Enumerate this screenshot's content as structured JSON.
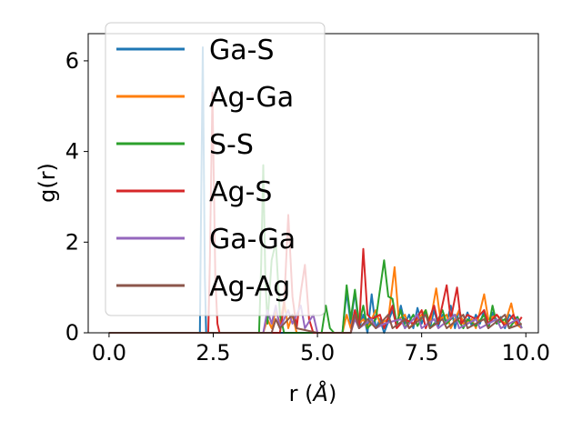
{
  "chart_data": {
    "type": "line",
    "title": "",
    "xlabel": "r (Å)",
    "xlabel_main": "r (",
    "xlabel_unit": "Å",
    "xlabel_close": ")",
    "ylabel": "g(r)",
    "xlim": [
      -0.5,
      10.3
    ],
    "ylim": [
      0,
      6.6
    ],
    "xticks": [
      0.0,
      2.5,
      5.0,
      7.5,
      10.0
    ],
    "xtick_labels": [
      "0.0",
      "2.5",
      "5.0",
      "7.5",
      "10.0"
    ],
    "yticks": [
      0,
      2,
      4,
      6
    ],
    "ytick_labels": [
      "0",
      "2",
      "4",
      "6"
    ],
    "grid": false,
    "legend_position": "upper-left",
    "series": [
      {
        "name": "Ga-S",
        "color": "#1f77b4",
        "points": [
          [
            0,
            0
          ],
          [
            2.18,
            0
          ],
          [
            2.2,
            2.1
          ],
          [
            2.25,
            6.3
          ],
          [
            2.3,
            1.2
          ],
          [
            2.33,
            0
          ],
          [
            5.6,
            0
          ],
          [
            5.7,
            0.9
          ],
          [
            5.8,
            0.2
          ],
          [
            5.9,
            0.9
          ],
          [
            6.0,
            0.1
          ],
          [
            6.1,
            0.4
          ],
          [
            6.2,
            0.0
          ],
          [
            6.3,
            0.85
          ],
          [
            6.4,
            0.1
          ],
          [
            6.5,
            0.3
          ],
          [
            6.6,
            0.0
          ],
          [
            6.8,
            0.5
          ],
          [
            6.9,
            0.15
          ],
          [
            7.0,
            0.6
          ],
          [
            7.1,
            0.2
          ],
          [
            7.2,
            0.4
          ],
          [
            7.3,
            0.1
          ],
          [
            7.4,
            0.55
          ],
          [
            7.5,
            0.2
          ],
          [
            7.6,
            0.45
          ],
          [
            7.7,
            0.1
          ],
          [
            7.8,
            0.5
          ],
          [
            7.9,
            0.15
          ],
          [
            8.0,
            0.4
          ],
          [
            8.1,
            0.2
          ],
          [
            8.2,
            0.6
          ],
          [
            8.3,
            0.1
          ],
          [
            8.4,
            0.5
          ],
          [
            8.5,
            0.2
          ],
          [
            8.6,
            0.45
          ],
          [
            8.7,
            0.15
          ],
          [
            8.8,
            0.4
          ],
          [
            8.9,
            0.2
          ],
          [
            9.0,
            0.5
          ],
          [
            9.1,
            0.1
          ],
          [
            9.2,
            0.45
          ],
          [
            9.3,
            0.2
          ],
          [
            9.4,
            0.35
          ],
          [
            9.5,
            0.1
          ],
          [
            9.6,
            0.4
          ],
          [
            9.7,
            0.3
          ],
          [
            9.8,
            0.35
          ],
          [
            9.9,
            0.1
          ]
        ]
      },
      {
        "name": "Ag-Ga",
        "color": "#ff7f0e",
        "points": [
          [
            0,
            0
          ],
          [
            3.7,
            0
          ],
          [
            3.8,
            0.3
          ],
          [
            3.9,
            0.1
          ],
          [
            4.0,
            0.5
          ],
          [
            4.1,
            0.2
          ],
          [
            4.2,
            0.7
          ],
          [
            4.3,
            0.1
          ],
          [
            4.4,
            0.4
          ],
          [
            4.5,
            0.0
          ],
          [
            5.6,
            0
          ],
          [
            5.7,
            0.4
          ],
          [
            5.8,
            0.1
          ],
          [
            5.9,
            0.5
          ],
          [
            6.0,
            0.2
          ],
          [
            6.1,
            0.3
          ],
          [
            6.2,
            0.1
          ],
          [
            6.4,
            0.5
          ],
          [
            6.5,
            0.2
          ],
          [
            6.7,
            0.3
          ],
          [
            6.85,
            1.45
          ],
          [
            6.95,
            0.3
          ],
          [
            7.1,
            0.4
          ],
          [
            7.2,
            0.1
          ],
          [
            7.4,
            0.3
          ],
          [
            7.6,
            0.5
          ],
          [
            7.7,
            0.2
          ],
          [
            7.85,
            0.98
          ],
          [
            7.95,
            0.3
          ],
          [
            8.1,
            0.4
          ],
          [
            8.2,
            0.1
          ],
          [
            8.4,
            0.5
          ],
          [
            8.5,
            0.2
          ],
          [
            8.7,
            0.3
          ],
          [
            8.8,
            0.1
          ],
          [
            9.0,
            0.85
          ],
          [
            9.1,
            0.3
          ],
          [
            9.3,
            0.4
          ],
          [
            9.5,
            0.2
          ],
          [
            9.65,
            0.65
          ],
          [
            9.75,
            0.2
          ],
          [
            9.9,
            0.1
          ]
        ]
      },
      {
        "name": "S-S",
        "color": "#2ca02c",
        "points": [
          [
            0,
            0
          ],
          [
            3.6,
            0
          ],
          [
            3.65,
            1.5
          ],
          [
            3.7,
            3.7
          ],
          [
            3.75,
            1.2
          ],
          [
            3.8,
            0.2
          ],
          [
            3.9,
            1.6
          ],
          [
            4.0,
            2.0
          ],
          [
            4.1,
            0.4
          ],
          [
            4.2,
            0.0
          ],
          [
            5.1,
            0
          ],
          [
            5.2,
            0.6
          ],
          [
            5.3,
            0.1
          ],
          [
            5.4,
            0.0
          ],
          [
            5.6,
            0
          ],
          [
            5.7,
            1.05
          ],
          [
            5.8,
            0.3
          ],
          [
            5.9,
            0.95
          ],
          [
            6.0,
            0.2
          ],
          [
            6.1,
            0.6
          ],
          [
            6.2,
            0.1
          ],
          [
            6.4,
            0.3
          ],
          [
            6.6,
            1.6
          ],
          [
            6.7,
            0.8
          ],
          [
            6.8,
            0.75
          ],
          [
            6.9,
            0.2
          ],
          [
            7.0,
            0.5
          ],
          [
            7.1,
            0.1
          ],
          [
            7.3,
            0.4
          ],
          [
            7.4,
            0.15
          ],
          [
            7.6,
            0.5
          ],
          [
            7.7,
            0.1
          ],
          [
            7.9,
            0.3
          ],
          [
            8.0,
            0.5
          ],
          [
            8.1,
            0.2
          ],
          [
            8.3,
            0.4
          ],
          [
            8.5,
            0.1
          ],
          [
            8.6,
            0.3
          ],
          [
            8.8,
            0.15
          ],
          [
            9.0,
            0.4
          ],
          [
            9.1,
            0.1
          ],
          [
            9.2,
            0.6
          ],
          [
            9.3,
            0.2
          ],
          [
            9.5,
            0.3
          ],
          [
            9.6,
            0.1
          ],
          [
            9.8,
            0.35
          ],
          [
            9.9,
            0.1
          ]
        ]
      },
      {
        "name": "Ag-S",
        "color": "#d62728",
        "points": [
          [
            0,
            0
          ],
          [
            2.38,
            0
          ],
          [
            2.42,
            1.6
          ],
          [
            2.48,
            5.3
          ],
          [
            2.55,
            1.2
          ],
          [
            2.6,
            0.2
          ],
          [
            2.65,
            0
          ],
          [
            4.1,
            0
          ],
          [
            4.2,
            0.6
          ],
          [
            4.3,
            2.6
          ],
          [
            4.4,
            0.8
          ],
          [
            4.5,
            0.1
          ],
          [
            4.6,
            0.9
          ],
          [
            4.7,
            1.5
          ],
          [
            4.8,
            0.3
          ],
          [
            4.9,
            0.0
          ],
          [
            5.8,
            0
          ],
          [
            5.9,
            0.5
          ],
          [
            6.0,
            0.1
          ],
          [
            6.1,
            1.85
          ],
          [
            6.2,
            0.4
          ],
          [
            6.3,
            0.3
          ],
          [
            6.5,
            0.4
          ],
          [
            6.6,
            0.1
          ],
          [
            6.8,
            0.6
          ],
          [
            6.9,
            0.1
          ],
          [
            7.1,
            0.3
          ],
          [
            7.3,
            0.2
          ],
          [
            7.5,
            0.5
          ],
          [
            7.6,
            0.1
          ],
          [
            7.8,
            0.6
          ],
          [
            7.9,
            0.2
          ],
          [
            8.1,
            1.05
          ],
          [
            8.2,
            0.3
          ],
          [
            8.35,
            1.0
          ],
          [
            8.45,
            0.2
          ],
          [
            8.6,
            0.4
          ],
          [
            8.8,
            0.3
          ],
          [
            9.0,
            0.5
          ],
          [
            9.1,
            0.2
          ],
          [
            9.3,
            0.4
          ],
          [
            9.5,
            0.15
          ],
          [
            9.7,
            0.4
          ],
          [
            9.8,
            0.2
          ],
          [
            9.9,
            0.35
          ]
        ]
      },
      {
        "name": "Ga-Ga",
        "color": "#9467bd",
        "points": [
          [
            0,
            0
          ],
          [
            3.7,
            0
          ],
          [
            3.8,
            0.5
          ],
          [
            3.9,
            0.2
          ],
          [
            4.0,
            0.6
          ],
          [
            4.1,
            0.1
          ],
          [
            4.3,
            0.5
          ],
          [
            4.4,
            0.2
          ],
          [
            4.6,
            0.6
          ],
          [
            4.7,
            0.1
          ],
          [
            4.9,
            0.4
          ],
          [
            5.0,
            0.0
          ],
          [
            5.8,
            0
          ],
          [
            5.9,
            0.3
          ],
          [
            6.0,
            0.1
          ],
          [
            6.3,
            0.3
          ],
          [
            6.4,
            0.1
          ],
          [
            6.6,
            0.2
          ],
          [
            7.0,
            0.3
          ],
          [
            7.1,
            0.1
          ],
          [
            7.4,
            0.4
          ],
          [
            7.5,
            0.1
          ],
          [
            7.8,
            0.3
          ],
          [
            7.9,
            0.1
          ],
          [
            8.3,
            0.4
          ],
          [
            8.4,
            0.1
          ],
          [
            8.8,
            0.3
          ],
          [
            8.9,
            0.1
          ],
          [
            9.3,
            0.3
          ],
          [
            9.4,
            0.1
          ],
          [
            9.8,
            0.3
          ],
          [
            9.9,
            0.1
          ]
        ]
      },
      {
        "name": "Ag-Ag",
        "color": "#8c564b",
        "points": [
          [
            0,
            0
          ],
          [
            3.9,
            0
          ],
          [
            4.0,
            0.3
          ],
          [
            4.1,
            0.1
          ],
          [
            4.4,
            0.4
          ],
          [
            4.5,
            0.1
          ],
          [
            5.0,
            0
          ],
          [
            5.8,
            0
          ],
          [
            5.9,
            0.4
          ],
          [
            6.0,
            0.1
          ],
          [
            6.2,
            0.3
          ],
          [
            6.4,
            0.1
          ],
          [
            6.7,
            0.4
          ],
          [
            6.8,
            0.1
          ],
          [
            7.1,
            0.3
          ],
          [
            7.2,
            0.1
          ],
          [
            7.6,
            0.4
          ],
          [
            7.7,
            0.1
          ],
          [
            8.0,
            0.3
          ],
          [
            8.1,
            0.1
          ],
          [
            8.5,
            0.4
          ],
          [
            8.6,
            0.1
          ],
          [
            9.0,
            0.3
          ],
          [
            9.1,
            0.1
          ],
          [
            9.5,
            0.4
          ],
          [
            9.6,
            0.1
          ],
          [
            9.9,
            0.2
          ]
        ]
      }
    ]
  }
}
